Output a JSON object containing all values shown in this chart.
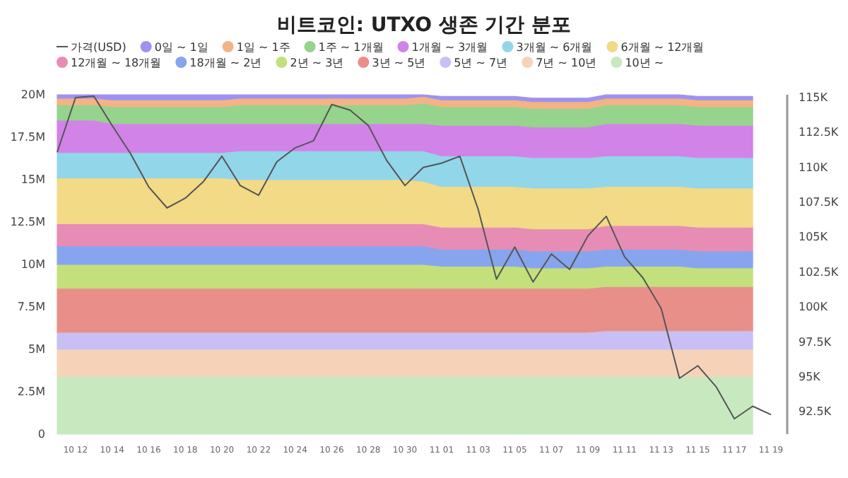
{
  "chart_data": {
    "type": "area",
    "stacked": true,
    "title": "비트코인: UTXO 생존 기간 분포",
    "legend": "top",
    "categories": [
      null,
      "10 12",
      null,
      "10 14",
      null,
      "10 16",
      null,
      "10 18",
      null,
      "10 20",
      null,
      "10 22",
      null,
      "10 24",
      null,
      "10 26",
      null,
      "10 28",
      null,
      "10 30",
      null,
      "11 01",
      null,
      "11 03",
      null,
      "11 05",
      null,
      "11 07",
      null,
      "11 09",
      null,
      "11 11",
      null,
      "11 13",
      null,
      "11 15",
      null,
      "11 17",
      null,
      "11 19"
    ],
    "ylim": [
      0,
      20000000
    ],
    "yticks": [
      {
        "value": 0,
        "label": "0"
      },
      {
        "value": 2500000,
        "label": "2.5M"
      },
      {
        "value": 5000000,
        "label": "5M"
      },
      {
        "value": 7500000,
        "label": "7.5M"
      },
      {
        "value": 10000000,
        "label": "10M"
      },
      {
        "value": 12500000,
        "label": "12.5M"
      },
      {
        "value": 15000000,
        "label": "15M"
      },
      {
        "value": 17500000,
        "label": "17.5M"
      },
      {
        "value": 20000000,
        "label": "20M"
      }
    ],
    "y2lim": [
      90900,
      115200
    ],
    "y2ticks": [
      {
        "value": 92500,
        "label": "92.5K"
      },
      {
        "value": 95000,
        "label": "95K"
      },
      {
        "value": 97500,
        "label": "97.5K"
      },
      {
        "value": 100000,
        "label": "100K"
      },
      {
        "value": 102500,
        "label": "102.5K"
      },
      {
        "value": 105000,
        "label": "105K"
      },
      {
        "value": 107500,
        "label": "107.5K"
      },
      {
        "value": 110000,
        "label": "110K"
      },
      {
        "value": 112500,
        "label": "112.5K"
      },
      {
        "value": 115000,
        "label": "115K"
      }
    ],
    "series": [
      {
        "name": "가격(USD)",
        "type": "line",
        "axis": "y2",
        "color": "#555555",
        "values": [
          111100,
          115000,
          115100,
          113000,
          111000,
          108600,
          107100,
          107800,
          109000,
          110800,
          108700,
          108000,
          110400,
          111400,
          111900,
          114500,
          114100,
          113000,
          110500,
          108700,
          110000,
          110300,
          110800,
          107000,
          102000,
          104300,
          101800,
          103800,
          102700,
          105100,
          106500,
          103600,
          102100,
          99900,
          94900,
          95800,
          94300,
          92000,
          92900,
          92300
        ]
      },
      {
        "name": "10년 ~",
        "color": "#c8e9c0",
        "values": [
          3400000,
          3400000,
          3400000,
          3400000,
          3400000,
          3400000,
          3400000,
          3400000,
          3400000,
          3400000,
          3400000,
          3400000,
          3400000,
          3400000,
          3400000,
          3400000,
          3400000,
          3400000,
          3400000,
          3400000,
          3400000,
          3400000,
          3400000,
          3400000,
          3400000,
          3400000,
          3400000,
          3400000,
          3400000,
          3400000,
          3400000,
          3400000,
          3400000,
          3400000,
          3400000,
          3400000,
          3400000,
          3400000,
          3400000,
          null
        ]
      },
      {
        "name": "7년 ~ 10년",
        "color": "#f6d3b8",
        "values": [
          1600000,
          1600000,
          1600000,
          1600000,
          1600000,
          1600000,
          1600000,
          1600000,
          1600000,
          1600000,
          1600000,
          1600000,
          1600000,
          1600000,
          1600000,
          1600000,
          1600000,
          1600000,
          1600000,
          1600000,
          1600000,
          1600000,
          1600000,
          1600000,
          1600000,
          1600000,
          1600000,
          1600000,
          1600000,
          1600000,
          1600000,
          1600000,
          1600000,
          1600000,
          1600000,
          1600000,
          1600000,
          1600000,
          1600000,
          null
        ]
      },
      {
        "name": "5년 ~ 7년",
        "color": "#c8c0f4",
        "values": [
          1000000,
          1000000,
          1000000,
          1000000,
          1000000,
          1000000,
          1000000,
          1000000,
          1000000,
          1000000,
          1000000,
          1000000,
          1000000,
          1000000,
          1000000,
          1000000,
          1000000,
          1000000,
          1000000,
          1000000,
          1000000,
          1000000,
          1000000,
          1000000,
          1000000,
          1000000,
          1000000,
          1000000,
          1000000,
          1000000,
          1100000,
          1100000,
          1100000,
          1100000,
          1100000,
          1100000,
          1100000,
          1100000,
          1100000,
          null
        ]
      },
      {
        "name": "3년 ~ 5년",
        "color": "#e88f8a",
        "values": [
          2600000,
          2600000,
          2600000,
          2600000,
          2600000,
          2600000,
          2600000,
          2600000,
          2600000,
          2600000,
          2600000,
          2600000,
          2600000,
          2600000,
          2600000,
          2600000,
          2600000,
          2600000,
          2600000,
          2600000,
          2600000,
          2600000,
          2600000,
          2600000,
          2600000,
          2600000,
          2600000,
          2600000,
          2600000,
          2600000,
          2600000,
          2600000,
          2600000,
          2600000,
          2600000,
          2600000,
          2600000,
          2600000,
          2600000,
          null
        ]
      },
      {
        "name": "2년 ~ 3년",
        "color": "#c4e07c",
        "values": [
          1400000,
          1400000,
          1400000,
          1400000,
          1400000,
          1400000,
          1400000,
          1400000,
          1400000,
          1400000,
          1400000,
          1400000,
          1400000,
          1400000,
          1400000,
          1400000,
          1400000,
          1400000,
          1400000,
          1400000,
          1400000,
          1300000,
          1300000,
          1300000,
          1300000,
          1300000,
          1200000,
          1200000,
          1200000,
          1200000,
          1200000,
          1200000,
          1200000,
          1200000,
          1200000,
          1100000,
          1100000,
          1100000,
          1100000,
          null
        ]
      },
      {
        "name": "18개월 ~ 2년",
        "color": "#87a4ee",
        "values": [
          1100000,
          1100000,
          1100000,
          1100000,
          1100000,
          1100000,
          1100000,
          1100000,
          1100000,
          1100000,
          1100000,
          1100000,
          1100000,
          1100000,
          1100000,
          1100000,
          1100000,
          1100000,
          1100000,
          1100000,
          1100000,
          1000000,
          1000000,
          1000000,
          1000000,
          1000000,
          1000000,
          1000000,
          1000000,
          1000000,
          1000000,
          1000000,
          1000000,
          1000000,
          1000000,
          1000000,
          1000000,
          1000000,
          1000000,
          null
        ]
      },
      {
        "name": "12개월 ~ 18개월",
        "color": "#e78db5",
        "values": [
          1300000,
          1300000,
          1300000,
          1300000,
          1300000,
          1300000,
          1300000,
          1300000,
          1300000,
          1300000,
          1300000,
          1300000,
          1300000,
          1300000,
          1300000,
          1300000,
          1300000,
          1300000,
          1300000,
          1300000,
          1300000,
          1300000,
          1300000,
          1300000,
          1300000,
          1300000,
          1300000,
          1300000,
          1300000,
          1300000,
          1400000,
          1400000,
          1400000,
          1400000,
          1400000,
          1400000,
          1400000,
          1400000,
          1400000,
          null
        ]
      },
      {
        "name": "6개월 ~ 12개월",
        "color": "#f2da86",
        "values": [
          2700000,
          2700000,
          2700000,
          2700000,
          2700000,
          2700000,
          2700000,
          2700000,
          2700000,
          2700000,
          2600000,
          2600000,
          2600000,
          2600000,
          2600000,
          2600000,
          2600000,
          2600000,
          2600000,
          2600000,
          2500000,
          2400000,
          2400000,
          2400000,
          2400000,
          2400000,
          2400000,
          2400000,
          2400000,
          2400000,
          2300000,
          2300000,
          2300000,
          2300000,
          2300000,
          2300000,
          2300000,
          2300000,
          2300000,
          null
        ]
      },
      {
        "name": "3개월 ~ 6개월",
        "color": "#92d6ea",
        "values": [
          1500000,
          1500000,
          1500000,
          1500000,
          1500000,
          1500000,
          1500000,
          1500000,
          1500000,
          1500000,
          1700000,
          1700000,
          1700000,
          1700000,
          1700000,
          1700000,
          1700000,
          1700000,
          1700000,
          1700000,
          1800000,
          1800000,
          1800000,
          1800000,
          1800000,
          1800000,
          1800000,
          1800000,
          1800000,
          1800000,
          1800000,
          1800000,
          1800000,
          1800000,
          1800000,
          1800000,
          1800000,
          1800000,
          1800000,
          null
        ]
      },
      {
        "name": "1개월 ~ 3개월",
        "color": "#d183e8",
        "values": [
          1900000,
          1900000,
          1900000,
          1700000,
          1700000,
          1700000,
          1700000,
          1700000,
          1700000,
          1700000,
          1600000,
          1600000,
          1600000,
          1600000,
          1600000,
          1600000,
          1600000,
          1600000,
          1600000,
          1600000,
          1600000,
          1800000,
          1800000,
          1800000,
          1800000,
          1800000,
          1800000,
          1800000,
          1800000,
          1800000,
          1900000,
          1900000,
          1900000,
          1900000,
          1900000,
          1900000,
          1900000,
          1900000,
          1900000,
          null
        ]
      },
      {
        "name": "1주 ~ 1개월",
        "color": "#96d38c",
        "values": [
          900000,
          900000,
          900000,
          1000000,
          1000000,
          1000000,
          1000000,
          1000000,
          1000000,
          1000000,
          1100000,
          1100000,
          1100000,
          1100000,
          1100000,
          1100000,
          1100000,
          1100000,
          1100000,
          1100000,
          1200000,
          1100000,
          1100000,
          1100000,
          1100000,
          1100000,
          1100000,
          1100000,
          1100000,
          1100000,
          1100000,
          1100000,
          1100000,
          1100000,
          1100000,
          1100000,
          1100000,
          1100000,
          1100000,
          null
        ]
      },
      {
        "name": "1일 ~ 1주",
        "color": "#f4b384",
        "values": [
          400000,
          400000,
          400000,
          400000,
          400000,
          400000,
          400000,
          400000,
          400000,
          400000,
          400000,
          400000,
          400000,
          400000,
          400000,
          400000,
          400000,
          400000,
          400000,
          400000,
          400000,
          400000,
          400000,
          400000,
          400000,
          400000,
          400000,
          400000,
          400000,
          400000,
          400000,
          400000,
          400000,
          400000,
          400000,
          400000,
          400000,
          400000,
          400000,
          null
        ]
      },
      {
        "name": "0일 ~ 1일",
        "color": "#9d93ef",
        "values": [
          200000,
          200000,
          200000,
          300000,
          300000,
          300000,
          300000,
          300000,
          300000,
          300000,
          200000,
          200000,
          200000,
          200000,
          200000,
          200000,
          200000,
          200000,
          200000,
          200000,
          100000,
          200000,
          200000,
          200000,
          200000,
          200000,
          200000,
          200000,
          200000,
          200000,
          200000,
          200000,
          200000,
          200000,
          200000,
          200000,
          200000,
          200000,
          200000,
          null
        ]
      }
    ]
  }
}
